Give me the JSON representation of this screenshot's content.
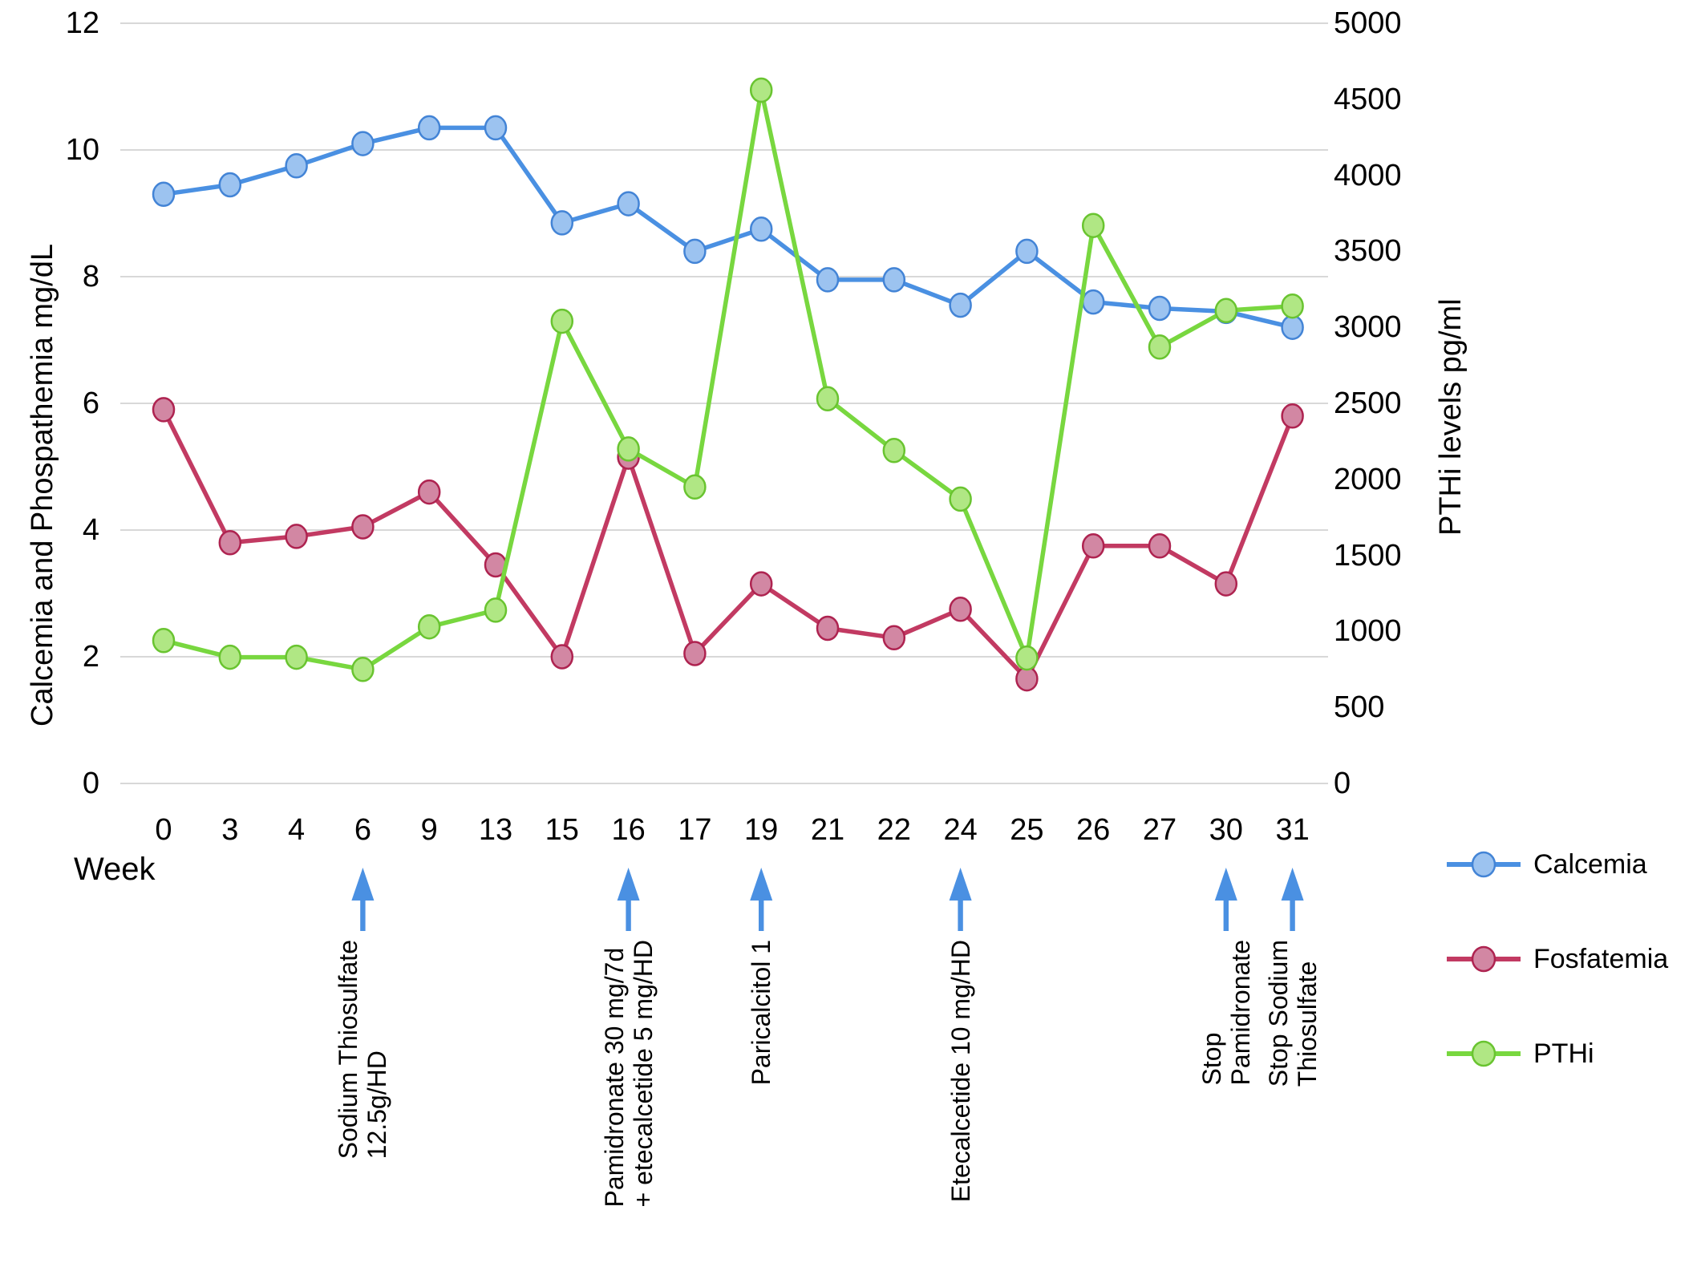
{
  "chart_data": {
    "type": "line",
    "title": "",
    "x_label": "Week",
    "categories": [
      "0",
      "3",
      "4",
      "6",
      "9",
      "13",
      "15",
      "16",
      "17",
      "19",
      "21",
      "22",
      "24",
      "25",
      "26",
      "27",
      "30",
      "31"
    ],
    "series": [
      {
        "name": "Calcemia",
        "axis": "left",
        "unit": "mg/dL",
        "color": "#4a90e2",
        "marker_fill": "#9cc3f0",
        "marker_stroke": "#4384d6",
        "values": [
          9.3,
          9.45,
          9.75,
          10.1,
          10.35,
          10.35,
          8.85,
          9.15,
          8.4,
          8.75,
          7.95,
          7.95,
          7.55,
          8.4,
          7.6,
          7.5,
          7.45,
          7.2
        ]
      },
      {
        "name": "Fosfatemia",
        "axis": "left",
        "unit": "mg/dL",
        "color": "#c23a62",
        "marker_fill": "#d287a3",
        "marker_stroke": "#ae2350",
        "values": [
          5.9,
          3.8,
          3.9,
          4.05,
          4.6,
          3.45,
          2.0,
          5.15,
          2.05,
          3.15,
          2.45,
          2.3,
          2.75,
          1.65,
          3.75,
          3.75,
          3.15,
          5.8
        ]
      },
      {
        "name": "PTHi",
        "axis": "right",
        "unit": "pg/ml",
        "color": "#78d73f",
        "marker_fill": "#b0e784",
        "marker_stroke": "#69c430",
        "values": [
          940,
          830,
          830,
          750,
          1030,
          1140,
          3040,
          2200,
          1950,
          4560,
          2530,
          2190,
          1870,
          825,
          3670,
          2870,
          3110,
          3140
        ]
      }
    ],
    "left_axis": {
      "title": "Calcemia and Phospathemia  mg/dL",
      "range": [
        0,
        12
      ],
      "ticks": [
        0,
        2,
        4,
        6,
        8,
        10,
        12
      ]
    },
    "right_axis": {
      "title": "PTHi levels  pg/ml",
      "range": [
        0,
        5000
      ],
      "ticks": [
        0,
        500,
        1000,
        1500,
        2000,
        2500,
        3000,
        3500,
        4000,
        4500,
        5000
      ]
    },
    "grid": "horizontal",
    "gridline_color": "#d8d8d8",
    "legend_position": "right-bottom",
    "arrow_color": "#4a90e2",
    "annotations": [
      {
        "week": "6",
        "lines": [
          "Sodium Thiosulfate",
          "12.5g/HD"
        ]
      },
      {
        "week": "16",
        "lines": [
          "Pamidronate 30 mg/7d",
          "+ etecalcetide 5 mg/HD"
        ]
      },
      {
        "week": "19",
        "lines": [
          "Paricalcitol 1"
        ]
      },
      {
        "week": "24",
        "lines": [
          "Etecalcetide 10 mg/HD"
        ]
      },
      {
        "week": "30",
        "lines": [
          "Stop",
          "Pamidronate"
        ]
      },
      {
        "week": "31",
        "lines": [
          "Stop Sodium",
          "Thiosulfate"
        ]
      }
    ]
  },
  "legend": {
    "items": [
      {
        "label": "Calcemia"
      },
      {
        "label": "Fosfatemia"
      },
      {
        "label": "PTHi"
      }
    ]
  }
}
